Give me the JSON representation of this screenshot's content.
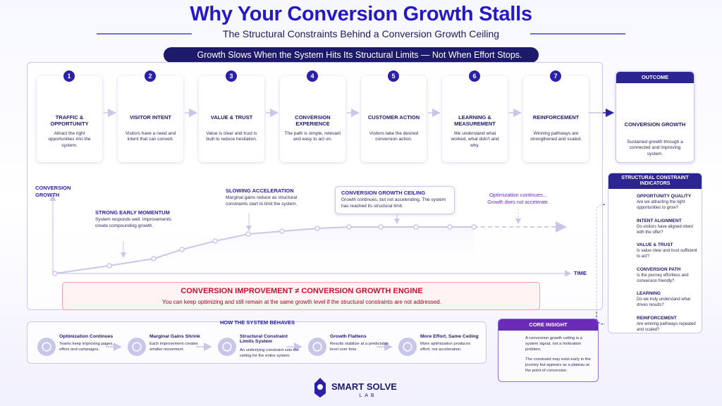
{
  "header": {
    "title": "Why Your Conversion Growth Stalls",
    "subtitle": "The Structural Constraints Behind a Conversion Growth Ceiling",
    "banner": "Growth Slows When the System Hits Its Structural Limits — Not When Effort Stops."
  },
  "steps": [
    {
      "number": 1,
      "title": "TRAFFIC & OPPORTUNITY",
      "desc": "Attract the right opportunities into the system."
    },
    {
      "number": 2,
      "title": "VISITOR INTENT",
      "desc": "Visitors have a need and intent that can convert."
    },
    {
      "number": 3,
      "title": "VALUE & TRUST",
      "desc": "Value is clear and trust is built to reduce hesitation."
    },
    {
      "number": 4,
      "title": "CONVERSION EXPERIENCE",
      "desc": "The path is simple, relevant and easy to act on."
    },
    {
      "number": 5,
      "title": "CUSTOMER ACTION",
      "desc": "Visitors take the desired conversion action."
    },
    {
      "number": 6,
      "title": "LEARNING & MEASUREMENT",
      "desc": "We understand what worked, what didn't and why."
    },
    {
      "number": 7,
      "title": "REINFORCEMENT",
      "desc": "Winning pathways are strengthened and scaled."
    }
  ],
  "outcome": {
    "label": "OUTCOME",
    "title": "CONVERSION GROWTH",
    "desc": "Sustained growth through a connected and improving system."
  },
  "chart": {
    "y_label": "CONVERSION GROWTH",
    "x_label": "TIME",
    "annotations": [
      {
        "title": "STRONG EARLY MOMENTUM",
        "desc": "System responds well. Improvements create compounding growth."
      },
      {
        "title": "SLOWING ACCELERATION",
        "desc": "Marginal gains reduce as structural constraints start to limit the system."
      },
      {
        "title": "CONVERSION GROWTH CEILING",
        "desc": "Growth continues, but not accelerating. The system has reached its structural limit."
      },
      {
        "title": "Optimization continues...",
        "desc": "Growth does not accelerate."
      }
    ]
  },
  "warning": {
    "title": "CONVERSION IMPROVEMENT ≠ CONVERSION GROWTH ENGINE",
    "desc": "You can keep optimizing and still remain at the same growth level if the structural constraints are not addressed."
  },
  "behaves": {
    "title": "HOW THE SYSTEM BEHAVES",
    "items": [
      {
        "title": "Optimization Continues",
        "desc": "Teams keep improving pages, offers and campaigns."
      },
      {
        "title": "Marginal Gains Shrink",
        "desc": "Each improvement creates smaller movement."
      },
      {
        "title": "Structural Constraint Limits System",
        "desc": "An underlying constraint sets the ceiling for the entire system."
      },
      {
        "title": "Growth Flattens",
        "desc": "Results stabilize at a predictable level over time."
      },
      {
        "title": "More Effort, Same Ceiling",
        "desc": "More optimization produces effort, not acceleration."
      }
    ]
  },
  "core_insight": {
    "title": "CORE INSIGHT",
    "paragraphs": [
      "A conversion growth ceiling is a system signal, not a motivation problem.",
      "The constraint may exist early in the journey but appears as a plateau at the point of conversion."
    ]
  },
  "indicators": {
    "title": "STRUCTURAL CONSTRAINT INDICATORS",
    "items": [
      {
        "title": "OPPORTUNITY QUALITY",
        "desc": "Are we attracting the right opportunities to grow?"
      },
      {
        "title": "INTENT ALIGNMENT",
        "desc": "Do visitors have aligned intent with the offer?"
      },
      {
        "title": "VALUE & TRUST",
        "desc": "Is value clear and trust sufficient to act?"
      },
      {
        "title": "CONVERSION PATH",
        "desc": "Is the journey effortless and conversion friendly?"
      },
      {
        "title": "LEARNING",
        "desc": "Do we truly understand what drives results?"
      },
      {
        "title": "REINFORCEMENT",
        "desc": "Are winning pathways repeated and scaled?"
      }
    ]
  },
  "brand": {
    "name": "SMART SOLVE",
    "sub": "LAB"
  }
}
